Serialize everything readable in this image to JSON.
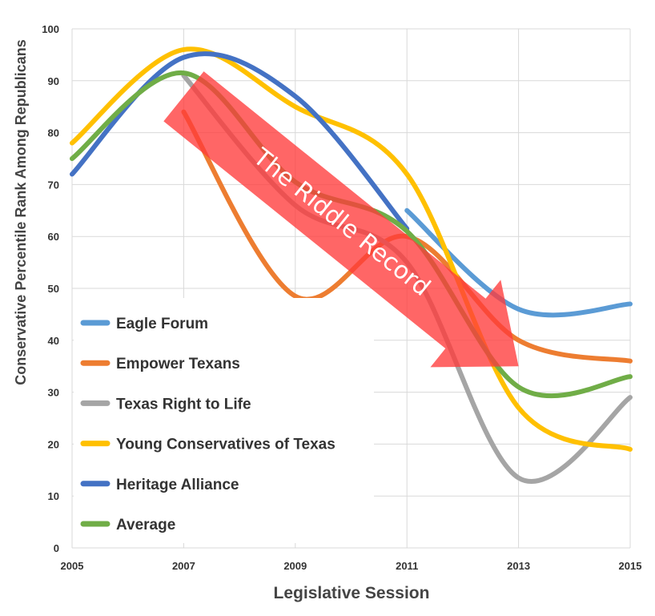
{
  "chart_data": {
    "type": "line",
    "title": "",
    "xlabel": "Legislative Session",
    "ylabel": "Conservative Percentile Rank Among Republicans",
    "xlim": [
      2005,
      2015
    ],
    "ylim": [
      0,
      100
    ],
    "x_ticks": [
      2005,
      2007,
      2009,
      2011,
      2013,
      2015
    ],
    "x_tick_labels": [
      "2005",
      "2007",
      "2009",
      "2011",
      "2013",
      "2015"
    ],
    "y_ticks": [
      0,
      10,
      20,
      30,
      40,
      50,
      60,
      70,
      80,
      90,
      100
    ],
    "y_tick_labels": [
      "0",
      "10",
      "20",
      "30",
      "40",
      "50",
      "60",
      "70",
      "80",
      "90",
      "100"
    ],
    "grid": true,
    "legend_position": "bottom-left",
    "series": [
      {
        "name": "Eagle Forum",
        "color": "#5B9BD5",
        "points": [
          [
            2011,
            65
          ],
          [
            2013,
            46
          ],
          [
            2015,
            47
          ]
        ]
      },
      {
        "name": "Empower Texans",
        "color": "#ED7D31",
        "points": [
          [
            2007,
            84
          ],
          [
            2009,
            48.5
          ],
          [
            2011,
            60
          ],
          [
            2013,
            40
          ],
          [
            2015,
            36
          ]
        ]
      },
      {
        "name": "Texas Right to Life",
        "color": "#A5A5A5",
        "points": [
          [
            2007,
            91
          ],
          [
            2009,
            66
          ],
          [
            2011,
            55
          ],
          [
            2013,
            13.5
          ],
          [
            2015,
            29
          ]
        ]
      },
      {
        "name": "Young Conservatives of Texas",
        "color": "#FFC000",
        "points": [
          [
            2005,
            78
          ],
          [
            2007,
            96
          ],
          [
            2009,
            85
          ],
          [
            2011,
            72
          ],
          [
            2013,
            27
          ],
          [
            2015,
            19
          ]
        ]
      },
      {
        "name": "Heritage Alliance",
        "color": "#4472C4",
        "points": [
          [
            2005,
            72
          ],
          [
            2007,
            94.5
          ],
          [
            2009,
            87
          ],
          [
            2011,
            61.5
          ]
        ]
      },
      {
        "name": "Average",
        "color": "#70AD47",
        "points": [
          [
            2005,
            75
          ],
          [
            2007,
            91.5
          ],
          [
            2009,
            70.5
          ],
          [
            2011,
            61
          ],
          [
            2013,
            31
          ],
          [
            2015,
            33
          ]
        ]
      }
    ],
    "annotation": {
      "text": "The Riddle Record",
      "color": "#FF3B3B",
      "arrow_from": [
        2007,
        87
      ],
      "arrow_to": [
        2013,
        35
      ]
    }
  }
}
